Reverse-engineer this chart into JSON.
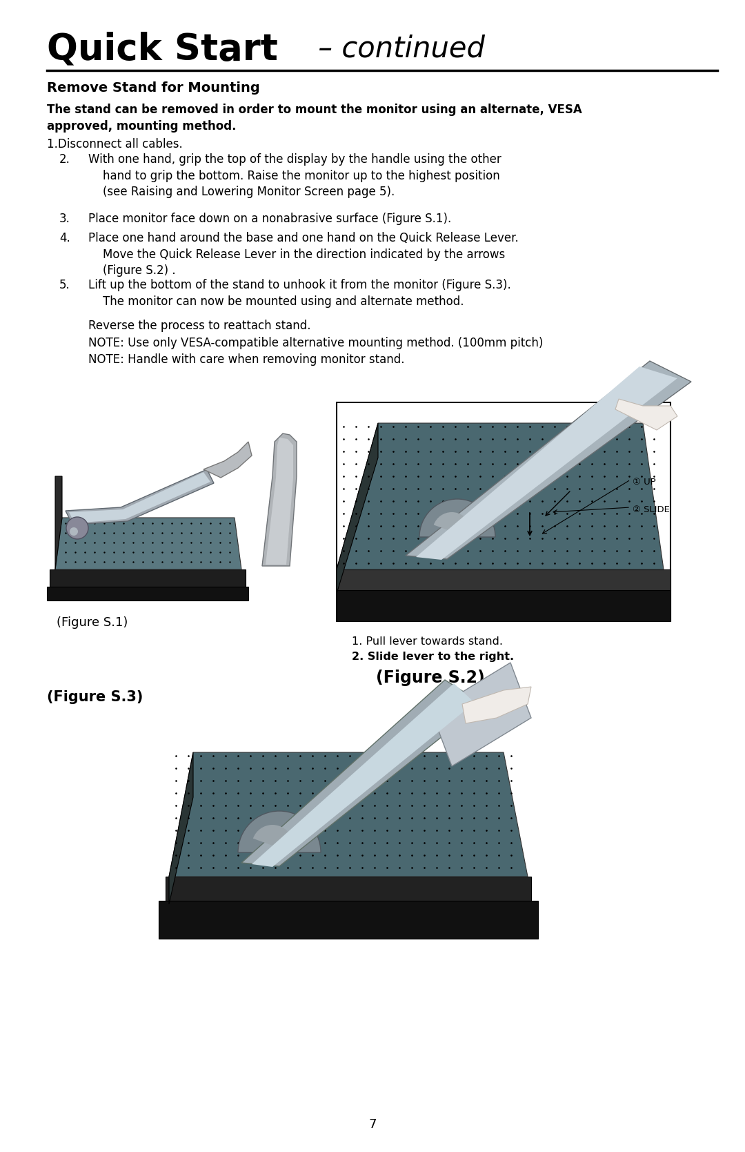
{
  "title_bold": "Quick Start",
  "title_italic": " – continued",
  "section_heading": "Remove Stand for Mounting",
  "intro_bold": "The stand can be removed in order to mount the monitor using an alternate, VESA\napproved, mounting method.",
  "step1": "1.Disconnect all cables.",
  "step2_label": "2.",
  "step2_text": "With one hand, grip the top of the display by the handle using the other\n    hand to grip the bottom. Raise the monitor up to the highest position\n    (see Raising and Lowering Monitor Screen page 5).",
  "step3_label": "3.",
  "step3_text": "Place monitor face down on a nonabrasive surface (Figure S.1).",
  "step4_label": "4.",
  "step4_text": "Place one hand around the base and one hand on the Quick Release Lever.\n    Move the Quick Release Lever in the direction indicated by the arrows\n    (Figure S.2) .",
  "step5_label": "5.",
  "step5_text": "Lift up the bottom of the stand to unhook it from the monitor (Figure S.3).\n    The monitor can now be mounted using and alternate method.",
  "note1": "Reverse the process to reattach stand.",
  "note2": "NOTE: Use only VESA-compatible alternative mounting method. (100mm pitch)",
  "note3": "NOTE: Handle with care when removing monitor stand.",
  "fig1_label": "(Figure S.1)",
  "fig2_label": "(Figure S.2)",
  "fig2_note1": "1. Pull lever towards stand.",
  "fig2_note2": "2. Slide lever to the right.",
  "fig3_label": "(Figure S.3)",
  "page_num": "7",
  "fig2_up": "① UP",
  "fig2_slide": "② SLIDE",
  "bg_color": "#ffffff",
  "text_color": "#000000",
  "fig2_up_label": "① UP",
  "fig2_slide_label": "② SLIDE"
}
